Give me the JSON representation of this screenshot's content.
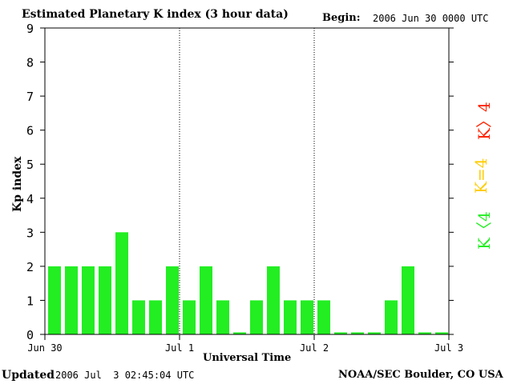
{
  "header": {
    "title": "Estimated Planetary K index (3 hour data)",
    "begin_label": "Begin:",
    "begin_value": "2006 Jun 30 0000 UTC"
  },
  "footer": {
    "updated_label": "Updated",
    "updated_value": "2006 Jul  3 02:45:04 UTC",
    "source": "NOAA/SEC Boulder, CO USA"
  },
  "legend": {
    "high": {
      "label": "K〉4",
      "color": "#ff2200"
    },
    "equal": {
      "label": "K=4",
      "color": "#ffcc00"
    },
    "low": {
      "label": "K〈4",
      "color": "#22ee22"
    }
  },
  "chart_data": {
    "type": "bar",
    "title": "Estimated Planetary K index (3 hour data)",
    "xlabel": "Universal Time",
    "ylabel": "Kp index",
    "ylim": [
      0,
      9
    ],
    "yticks": [
      "0",
      "1",
      "2",
      "3",
      "4",
      "5",
      "6",
      "7",
      "8",
      "9"
    ],
    "xticks": [
      "Jun 30",
      "Jul 1",
      "Jul 2",
      "Jul 3"
    ],
    "day_separators": [
      "Jul 1",
      "Jul 2"
    ],
    "bar_color": "#22ee22",
    "values": [
      2,
      2,
      2,
      2,
      3,
      1,
      1,
      2,
      1,
      2,
      1,
      0,
      1,
      2,
      1,
      1,
      1,
      0,
      0,
      0,
      1,
      2,
      0,
      0
    ]
  }
}
